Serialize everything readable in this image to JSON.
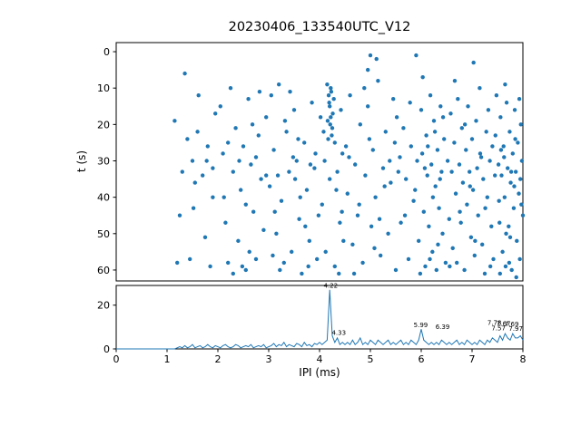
{
  "title": "20230406_133540UTC_V12",
  "chart_data": [
    {
      "type": "scatter",
      "title": "20230406_133540UTC_V12",
      "xlabel": "",
      "ylabel": "t (s)",
      "xlim": [
        0,
        8
      ],
      "ylim": [
        -2.5,
        63
      ],
      "y_inverted": true,
      "yticks": [
        0,
        10,
        20,
        30,
        40,
        50,
        60
      ],
      "xticks": [],
      "marker_color": "#1f77b4",
      "marker_size": 2.2,
      "points": [
        [
          1.15,
          19
        ],
        [
          1.2,
          58
        ],
        [
          1.35,
          6
        ],
        [
          1.45,
          57
        ],
        [
          1.5,
          30
        ],
        [
          1.52,
          43
        ],
        [
          1.6,
          22
        ],
        [
          1.62,
          12
        ],
        [
          1.7,
          34
        ],
        [
          1.75,
          51
        ],
        [
          1.8,
          26
        ],
        [
          1.85,
          59
        ],
        [
          1.9,
          40
        ],
        [
          1.95,
          17
        ],
        [
          1.3,
          33
        ],
        [
          1.4,
          24
        ],
        [
          1.55,
          36
        ],
        [
          1.78,
          30
        ],
        [
          1.9,
          32
        ],
        [
          1.25,
          45
        ],
        [
          2.05,
          15
        ],
        [
          2.1,
          28
        ],
        [
          2.15,
          47
        ],
        [
          2.2,
          58
        ],
        [
          2.25,
          10
        ],
        [
          2.3,
          33
        ],
        [
          2.35,
          21
        ],
        [
          2.4,
          52
        ],
        [
          2.45,
          38
        ],
        [
          2.5,
          26
        ],
        [
          2.55,
          60
        ],
        [
          2.6,
          13
        ],
        [
          2.65,
          31
        ],
        [
          2.7,
          44
        ],
        [
          2.75,
          57
        ],
        [
          2.8,
          23
        ],
        [
          2.85,
          35
        ],
        [
          2.9,
          49
        ],
        [
          2.95,
          18
        ],
        [
          2.12,
          40
        ],
        [
          2.42,
          30
        ],
        [
          2.62,
          55
        ],
        [
          2.82,
          11
        ],
        [
          2.3,
          61
        ],
        [
          2.55,
          42
        ],
        [
          2.75,
          29
        ],
        [
          2.95,
          34
        ],
        [
          2.2,
          25
        ],
        [
          2.48,
          59
        ],
        [
          2.68,
          20
        ],
        [
          3.02,
          37
        ],
        [
          3.05,
          12
        ],
        [
          3.1,
          27
        ],
        [
          3.15,
          50
        ],
        [
          3.2,
          9
        ],
        [
          3.25,
          41
        ],
        [
          3.3,
          58
        ],
        [
          3.35,
          22
        ],
        [
          3.4,
          33
        ],
        [
          3.45,
          55
        ],
        [
          3.5,
          16
        ],
        [
          3.55,
          30
        ],
        [
          3.6,
          46
        ],
        [
          3.65,
          61
        ],
        [
          3.7,
          25
        ],
        [
          3.75,
          38
        ],
        [
          3.8,
          52
        ],
        [
          3.85,
          14
        ],
        [
          3.9,
          32
        ],
        [
          3.95,
          57
        ],
        [
          3.12,
          44
        ],
        [
          3.32,
          19
        ],
        [
          3.52,
          35
        ],
        [
          3.72,
          48
        ],
        [
          3.92,
          28
        ],
        [
          3.22,
          60
        ],
        [
          3.42,
          11
        ],
        [
          3.62,
          40
        ],
        [
          3.82,
          31
        ],
        [
          3.18,
          34
        ],
        [
          3.58,
          24
        ],
        [
          3.78,
          59
        ],
        [
          3.98,
          45
        ],
        [
          3.08,
          56
        ],
        [
          3.48,
          29
        ],
        [
          4.15,
          9
        ],
        [
          4.18,
          12
        ],
        [
          4.2,
          15
        ],
        [
          4.22,
          18
        ],
        [
          4.25,
          21
        ],
        [
          4.17,
          24
        ],
        [
          4.23,
          11
        ],
        [
          4.19,
          14
        ],
        [
          4.21,
          20
        ],
        [
          4.26,
          17
        ],
        [
          4.24,
          23
        ],
        [
          4.16,
          19
        ],
        [
          4.28,
          13
        ],
        [
          4.3,
          25
        ],
        [
          4.22,
          10
        ],
        [
          4.1,
          30
        ],
        [
          4.05,
          42
        ],
        [
          4.12,
          55
        ],
        [
          4.35,
          33
        ],
        [
          4.4,
          47
        ],
        [
          4.45,
          28
        ],
        [
          4.3,
          59
        ],
        [
          4.42,
          16
        ],
        [
          4.08,
          22
        ],
        [
          4.33,
          38
        ],
        [
          4.47,
          52
        ],
        [
          4.2,
          35
        ],
        [
          4.38,
          61
        ],
        [
          4.02,
          18
        ],
        [
          4.44,
          44
        ],
        [
          4.52,
          26
        ],
        [
          4.55,
          39
        ],
        [
          4.6,
          12
        ],
        [
          4.65,
          53
        ],
        [
          4.7,
          31
        ],
        [
          4.75,
          45
        ],
        [
          4.8,
          20
        ],
        [
          4.85,
          58
        ],
        [
          4.9,
          34
        ],
        [
          4.95,
          15
        ],
        [
          5.0,
          1
        ],
        [
          5.02,
          48
        ],
        [
          5.05,
          27
        ],
        [
          5.1,
          40
        ],
        [
          5.15,
          8
        ],
        [
          5.2,
          56
        ],
        [
          5.25,
          32
        ],
        [
          5.3,
          22
        ],
        [
          5.35,
          50
        ],
        [
          5.4,
          36
        ],
        [
          5.45,
          13
        ],
        [
          5.5,
          60
        ],
        [
          4.58,
          29
        ],
        [
          4.78,
          42
        ],
        [
          4.98,
          24
        ],
        [
          5.18,
          46
        ],
        [
          5.38,
          30
        ],
        [
          4.68,
          61
        ],
        [
          4.88,
          10
        ],
        [
          5.08,
          54
        ],
        [
          5.28,
          37
        ],
        [
          5.48,
          25
        ],
        [
          4.95,
          5
        ],
        [
          5.12,
          2
        ],
        [
          5.52,
          18
        ],
        [
          5.55,
          33
        ],
        [
          5.6,
          47
        ],
        [
          5.65,
          21
        ],
        [
          5.7,
          35
        ],
        [
          5.75,
          57
        ],
        [
          5.8,
          26
        ],
        [
          5.85,
          41
        ],
        [
          5.9,
          1
        ],
        [
          5.92,
          30
        ],
        [
          5.95,
          52
        ],
        [
          6.0,
          16
        ],
        [
          6.02,
          28
        ],
        [
          6.05,
          44
        ],
        [
          6.08,
          59
        ],
        [
          6.1,
          23
        ],
        [
          6.12,
          34
        ],
        [
          6.15,
          48
        ],
        [
          6.18,
          12
        ],
        [
          6.2,
          31
        ],
        [
          6.22,
          55
        ],
        [
          6.25,
          19
        ],
        [
          6.28,
          37
        ],
        [
          6.3,
          60
        ],
        [
          6.32,
          27
        ],
        [
          6.35,
          43
        ],
        [
          6.38,
          15
        ],
        [
          6.4,
          33
        ],
        [
          6.42,
          50
        ],
        [
          6.45,
          24
        ],
        [
          6.48,
          58
        ],
        [
          5.58,
          29
        ],
        [
          5.68,
          45
        ],
        [
          5.78,
          14
        ],
        [
          5.88,
          38
        ],
        [
          5.98,
          61
        ],
        [
          6.03,
          7
        ],
        [
          6.13,
          26
        ],
        [
          6.23,
          40
        ],
        [
          6.33,
          53
        ],
        [
          6.43,
          18
        ],
        [
          6.07,
          32
        ],
        [
          6.17,
          57
        ],
        [
          6.27,
          22
        ],
        [
          6.37,
          35
        ],
        [
          6.52,
          30
        ],
        [
          6.55,
          46
        ],
        [
          6.58,
          17
        ],
        [
          6.6,
          33
        ],
        [
          6.62,
          54
        ],
        [
          6.65,
          25
        ],
        [
          6.68,
          39
        ],
        [
          6.7,
          58
        ],
        [
          6.72,
          13
        ],
        [
          6.75,
          31
        ],
        [
          6.78,
          47
        ],
        [
          6.8,
          21
        ],
        [
          6.82,
          36
        ],
        [
          6.85,
          60
        ],
        [
          6.88,
          27
        ],
        [
          6.9,
          42
        ],
        [
          6.92,
          15
        ],
        [
          6.95,
          33
        ],
        [
          6.98,
          51
        ],
        [
          7.0,
          24
        ],
        [
          7.02,
          38
        ],
        [
          7.05,
          56
        ],
        [
          7.08,
          19
        ],
        [
          7.1,
          32
        ],
        [
          7.12,
          45
        ],
        [
          7.15,
          10
        ],
        [
          7.18,
          29
        ],
        [
          7.2,
          53
        ],
        [
          7.22,
          35
        ],
        [
          7.25,
          61
        ],
        [
          7.28,
          22
        ],
        [
          7.3,
          40
        ],
        [
          7.32,
          16
        ],
        [
          7.35,
          30
        ],
        [
          7.38,
          48
        ],
        [
          7.4,
          26
        ],
        [
          7.42,
          57
        ],
        [
          7.45,
          34
        ],
        [
          7.48,
          12
        ],
        [
          6.56,
          59
        ],
        [
          6.66,
          8
        ],
        [
          6.76,
          44
        ],
        [
          6.86,
          20
        ],
        [
          6.96,
          37
        ],
        [
          7.06,
          52
        ],
        [
          7.16,
          28
        ],
        [
          7.26,
          43
        ],
        [
          7.36,
          59
        ],
        [
          7.46,
          23
        ],
        [
          7.03,
          3
        ],
        [
          7.52,
          31
        ],
        [
          7.54,
          47
        ],
        [
          7.56,
          18
        ],
        [
          7.58,
          34
        ],
        [
          7.6,
          55
        ],
        [
          7.62,
          26
        ],
        [
          7.64,
          40
        ],
        [
          7.66,
          59
        ],
        [
          7.68,
          14
        ],
        [
          7.7,
          32
        ],
        [
          7.72,
          48
        ],
        [
          7.74,
          22
        ],
        [
          7.76,
          36
        ],
        [
          7.78,
          60
        ],
        [
          7.8,
          28
        ],
        [
          7.82,
          43
        ],
        [
          7.84,
          16
        ],
        [
          7.86,
          33
        ],
        [
          7.88,
          52
        ],
        [
          7.9,
          25
        ],
        [
          7.92,
          39
        ],
        [
          7.94,
          57
        ],
        [
          7.96,
          20
        ],
        [
          7.98,
          30
        ],
        [
          8.0,
          45
        ],
        [
          7.55,
          61
        ],
        [
          7.65,
          9
        ],
        [
          7.75,
          51
        ],
        [
          7.85,
          24
        ],
        [
          7.95,
          35
        ],
        [
          7.53,
          41
        ],
        [
          7.63,
          29
        ],
        [
          7.73,
          58
        ],
        [
          7.83,
          37
        ],
        [
          7.93,
          13
        ],
        [
          7.57,
          27
        ],
        [
          7.67,
          50
        ],
        [
          7.77,
          33
        ],
        [
          7.87,
          62
        ],
        [
          7.97,
          42
        ]
      ]
    },
    {
      "type": "line",
      "xlabel": "IPI (ms)",
      "ylabel": "",
      "xlim": [
        0,
        8
      ],
      "ylim": [
        0,
        29
      ],
      "xticks": [
        0,
        1,
        2,
        3,
        4,
        5,
        6,
        7,
        8
      ],
      "yticks": [
        0,
        20
      ],
      "line_color": "#1f77b4",
      "x_start": 0,
      "x_step": 0.05,
      "values": [
        0,
        0,
        0,
        0,
        0,
        0,
        0,
        0,
        0,
        0,
        0,
        0,
        0,
        0,
        0,
        0,
        0,
        0,
        0,
        0,
        0,
        0,
        0,
        0,
        0.5,
        1,
        0.5,
        1.5,
        0.5,
        1,
        2,
        0.5,
        1,
        1.5,
        0.5,
        1,
        2,
        1,
        0.5,
        1.5,
        1,
        0.5,
        1.5,
        2,
        1,
        0.5,
        1,
        2,
        1.5,
        0.5,
        1,
        1.5,
        1,
        2,
        0.5,
        1,
        1.5,
        1,
        2,
        0.5,
        1,
        1.5,
        2.5,
        1,
        2,
        1.5,
        3,
        1,
        2,
        1.5,
        1,
        2.5,
        2,
        1,
        3,
        1.5,
        2,
        1,
        2.5,
        2,
        3,
        2,
        3,
        4,
        27,
        6,
        3,
        5,
        2,
        3,
        2,
        3,
        2,
        4,
        2,
        3,
        5,
        2,
        3,
        2,
        4,
        3,
        2,
        4,
        3,
        2,
        3,
        4,
        2,
        3,
        2,
        3,
        4,
        2,
        3,
        2,
        4,
        3,
        2,
        4,
        9,
        4,
        3,
        2,
        3,
        2,
        3,
        2,
        4,
        3,
        2,
        3,
        2,
        3,
        4,
        2,
        3,
        2,
        4,
        3,
        2,
        3,
        2,
        4,
        3,
        2,
        4,
        3,
        5,
        4,
        3,
        6,
        4,
        7,
        5,
        4,
        7,
        5,
        5,
        6,
        4
      ],
      "annotations": [
        {
          "label": "4.22",
          "x": 4.22,
          "y": 27.5
        },
        {
          "label": "4.33",
          "x": 4.38,
          "y": 6.0
        },
        {
          "label": "5.99",
          "x": 5.99,
          "y": 9.5
        },
        {
          "label": "6.39",
          "x": 6.42,
          "y": 8.8
        },
        {
          "label": "7.78",
          "x": 7.44,
          "y": 10.5
        },
        {
          "label": "7.67",
          "x": 7.62,
          "y": 10.2
        },
        {
          "label": "7.69",
          "x": 7.78,
          "y": 10.0
        },
        {
          "label": "7.57",
          "x": 7.52,
          "y": 8.0
        },
        {
          "label": "7.97",
          "x": 7.86,
          "y": 7.8
        }
      ]
    }
  ]
}
